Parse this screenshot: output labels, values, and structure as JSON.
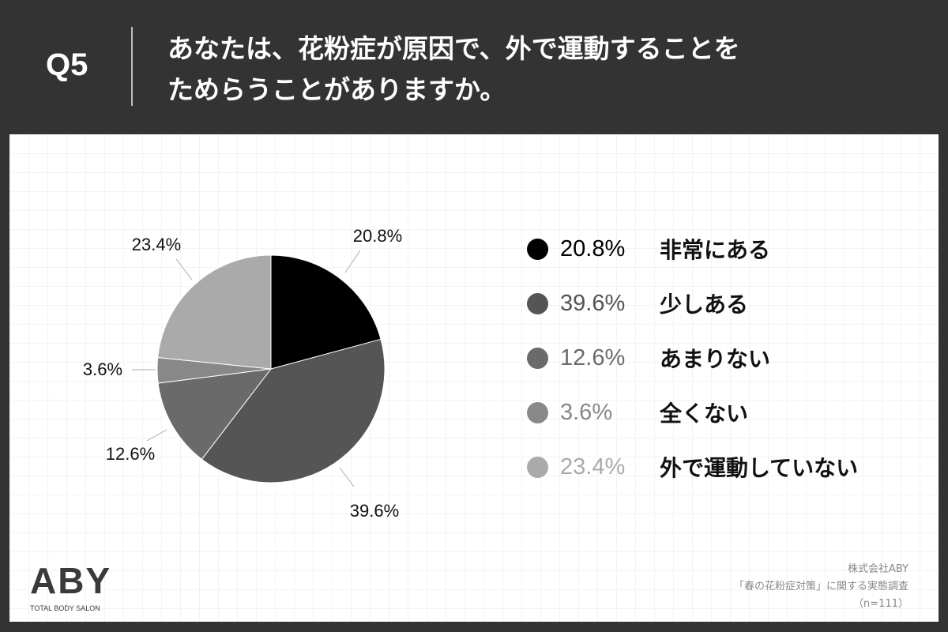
{
  "header": {
    "q_number": "Q5",
    "question_line1": "あなたは、花粉症が原因で、外で運動することを",
    "question_line2": "ためらうことがありますか。"
  },
  "chart_data": {
    "type": "pie",
    "categories": [
      "非常にある",
      "少しある",
      "あまりない",
      "全くない",
      "外で運動していない"
    ],
    "values": [
      20.8,
      39.6,
      12.6,
      3.6,
      23.4
    ],
    "labels": [
      "20.8%",
      "39.6%",
      "12.6%",
      "3.6%",
      "23.4%"
    ],
    "colors": [
      "#000000",
      "#555555",
      "#6a6a6a",
      "#888888",
      "#aaaaaa"
    ],
    "start": "12 o'clock",
    "direction": "clockwise",
    "legend_position": "right"
  },
  "legend": {
    "items": [
      {
        "pct": "20.8%",
        "label": "非常にある",
        "color": "#000000"
      },
      {
        "pct": "39.6%",
        "label": "少しある",
        "color": "#555555"
      },
      {
        "pct": "12.6%",
        "label": "あまりない",
        "color": "#6a6a6a"
      },
      {
        "pct": "3.6%",
        "label": "全くない",
        "color": "#888888"
      },
      {
        "pct": "23.4%",
        "label": "外で運動していない",
        "color": "#aaaaaa"
      }
    ]
  },
  "logo": {
    "mark": "ABY",
    "tagline": "TOTAL BODY SALON"
  },
  "source": {
    "line1": "株式会社ABY",
    "line2": "「春の花粉症対策」に関する実態調査",
    "line3": "（n=111）"
  }
}
